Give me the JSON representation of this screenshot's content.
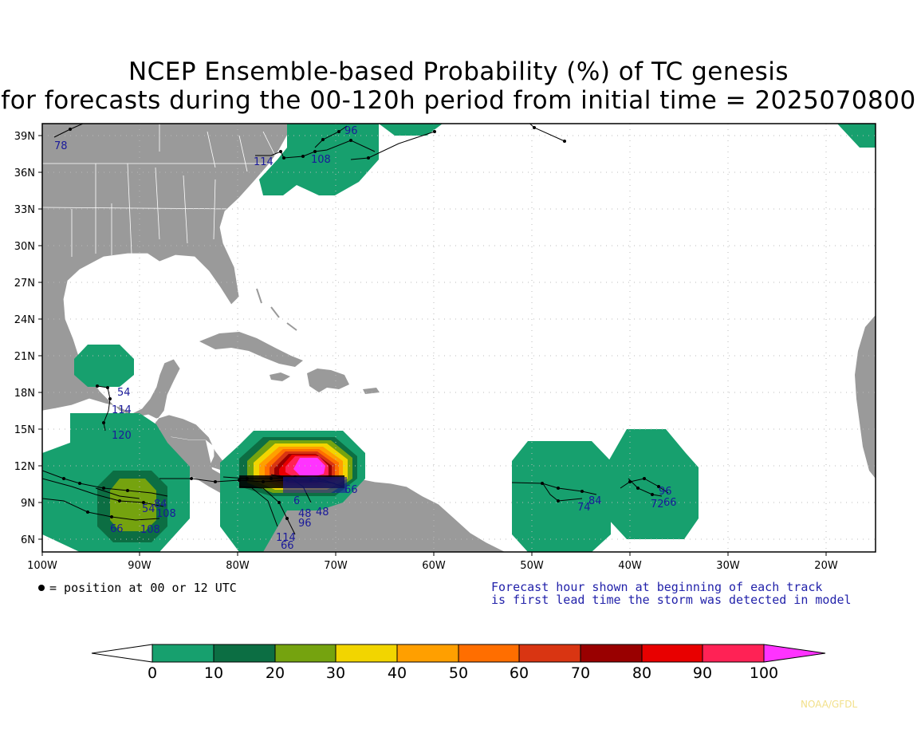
{
  "title": {
    "line1": "NCEP Ensemble-based Probability (%) of TC genesis",
    "line2": "for forecasts during the 00-120h period from initial time = 2025070800"
  },
  "map": {
    "lat_labels": [
      "39N",
      "36N",
      "33N",
      "30N",
      "27N",
      "24N",
      "21N",
      "18N",
      "15N",
      "12N",
      "9N",
      "6N"
    ],
    "lon_labels": [
      "100W",
      "90W",
      "80W",
      "70W",
      "60W",
      "50W",
      "40W",
      "30W",
      "20W"
    ],
    "track_labels": [
      "78",
      "96",
      "114",
      "108",
      "54",
      "114",
      "120",
      "66",
      "6",
      "96",
      "48",
      "48",
      "114",
      "66",
      "74",
      "84",
      "96",
      "72",
      "66",
      "66",
      "108",
      "108",
      "84",
      "54"
    ]
  },
  "notes": {
    "position_marker": "= position at 00 or 12 UTC",
    "forecast_line1": "Forecast hour shown at beginning of each track",
    "forecast_line2": "is first lead time the storm was detected in model"
  },
  "colorbar": {
    "ticks": [
      "0",
      "10",
      "20",
      "30",
      "40",
      "50",
      "60",
      "70",
      "80",
      "90",
      "100"
    ],
    "colors": [
      "#ffffff",
      "#17a06e",
      "#0c6e43",
      "#75a30f",
      "#f2d500",
      "#ff9f00",
      "#ff6e00",
      "#d93512",
      "#990000",
      "#e80000",
      "#ff2255",
      "#ff33ff"
    ]
  },
  "credit": "NOAA/GFDL"
}
